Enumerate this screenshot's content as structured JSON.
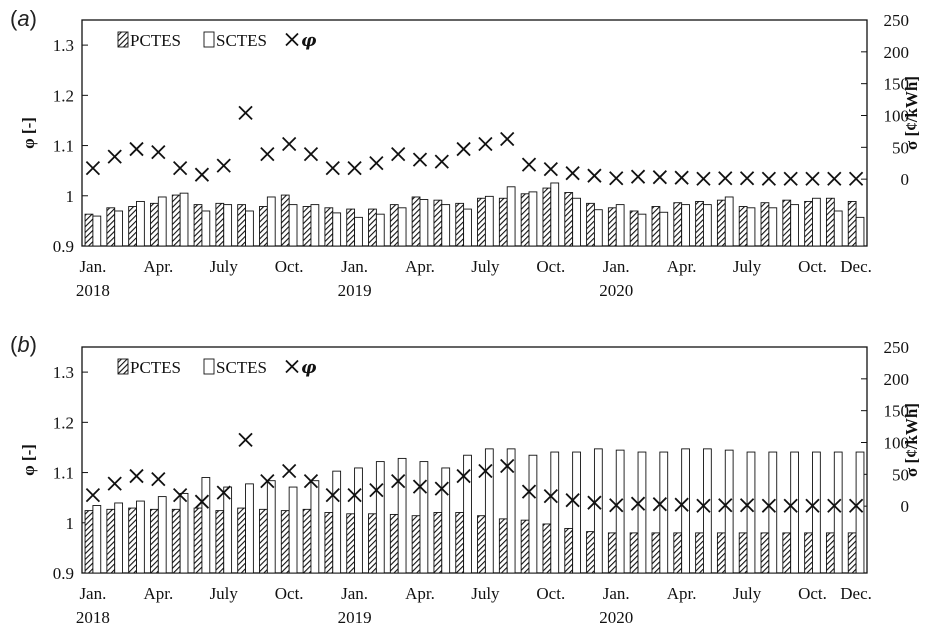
{
  "chart_data": [
    {
      "panel": "(a)",
      "type": "bar",
      "x": [
        "Jan. 2018",
        "Feb. 2018",
        "Mar. 2018",
        "Apr. 2018",
        "May 2018",
        "Jun. 2018",
        "Jul. 2018",
        "Aug. 2018",
        "Sep. 2018",
        "Oct. 2018",
        "Nov. 2018",
        "Dec. 2018",
        "Jan. 2019",
        "Feb. 2019",
        "Mar. 2019",
        "Apr. 2019",
        "May 2019",
        "Jun. 2019",
        "Jul. 2019",
        "Aug. 2019",
        "Sep. 2019",
        "Oct. 2019",
        "Nov. 2019",
        "Dec. 2019",
        "Jan. 2020",
        "Feb. 2020",
        "Mar. 2020",
        "Apr. 2020",
        "May 2020",
        "Jun. 2020",
        "Jul. 2020",
        "Aug. 2020",
        "Sep. 2020",
        "Oct. 2020",
        "Nov. 2020",
        "Dec. 2020"
      ],
      "xticks": [
        {
          "label": "Jan.",
          "year": "2018",
          "index": 0
        },
        {
          "label": "Apr.",
          "year": "",
          "index": 3
        },
        {
          "label": "July",
          "year": "",
          "index": 6
        },
        {
          "label": "Oct.",
          "year": "",
          "index": 9
        },
        {
          "label": "Jan.",
          "year": "2019",
          "index": 12
        },
        {
          "label": "Apr.",
          "year": "",
          "index": 15
        },
        {
          "label": "July",
          "year": "",
          "index": 18
        },
        {
          "label": "Oct.",
          "year": "",
          "index": 21
        },
        {
          "label": "Jan.",
          "year": "2020",
          "index": 24
        },
        {
          "label": "Apr.",
          "year": "",
          "index": 27
        },
        {
          "label": "July",
          "year": "",
          "index": 30
        },
        {
          "label": "Oct.",
          "year": "",
          "index": 33
        },
        {
          "label": "Dec.",
          "year": "",
          "index": 35
        }
      ],
      "series": [
        {
          "name": "PCTES",
          "axis": "right",
          "style": "hatched",
          "values": [
            -55,
            -45,
            -43,
            -38,
            -25,
            -40,
            -38,
            -40,
            -43,
            -25,
            -43,
            -45,
            -47,
            -47,
            -40,
            -28,
            -33,
            -38,
            -30,
            -30,
            -23,
            -14,
            -21,
            -38,
            -45,
            -50,
            -43,
            -37,
            -35,
            -33,
            -43,
            -37,
            -33,
            -35,
            -30,
            -35
          ]
        },
        {
          "name": "SCTES",
          "axis": "right",
          "style": "white",
          "values": [
            -58,
            -50,
            -35,
            -28,
            -22,
            -50,
            -40,
            -50,
            -28,
            -40,
            -40,
            -53,
            -60,
            -55,
            -45,
            -32,
            -40,
            -47,
            -27,
            -12,
            -20,
            -6,
            -30,
            -48,
            -40,
            -55,
            -52,
            -40,
            -40,
            -28,
            -45,
            -45,
            -40,
            -30,
            -50,
            -60
          ]
        },
        {
          "name": "φ",
          "axis": "left",
          "marker": "x",
          "values": [
            1.055,
            1.078,
            1.093,
            1.087,
            1.055,
            1.042,
            1.06,
            1.165,
            1.083,
            1.103,
            1.083,
            1.055,
            1.055,
            1.065,
            1.083,
            1.072,
            1.068,
            1.093,
            1.103,
            1.113,
            1.062,
            1.053,
            1.045,
            1.04,
            1.035,
            1.038,
            1.037,
            1.036,
            1.034,
            1.035,
            1.035,
            1.034,
            1.034,
            1.034,
            1.034,
            1.034
          ]
        }
      ],
      "yleft": {
        "label": "φ [-]",
        "ylim": [
          0.9,
          1.35
        ],
        "ticks": [
          "0.9",
          "1",
          "1.1",
          "1.2",
          "1.3"
        ]
      },
      "yright": {
        "label": "σ [¢/kWh]",
        "ylim": [
          -105,
          250
        ],
        "ticks": [
          "0",
          "50",
          "100",
          "150",
          "200",
          "250"
        ]
      },
      "legend": {
        "position": "top-left",
        "items": [
          "PCTES",
          "SCTES",
          "φ"
        ]
      }
    },
    {
      "panel": "(b)",
      "type": "bar",
      "x": [
        "Jan. 2018",
        "Feb. 2018",
        "Mar. 2018",
        "Apr. 2018",
        "May 2018",
        "Jun. 2018",
        "Jul. 2018",
        "Aug. 2018",
        "Sep. 2018",
        "Oct. 2018",
        "Nov. 2018",
        "Dec. 2018",
        "Jan. 2019",
        "Feb. 2019",
        "Mar. 2019",
        "Apr. 2019",
        "May 2019",
        "Jun. 2019",
        "Jul. 2019",
        "Aug. 2019",
        "Sep. 2019",
        "Oct. 2019",
        "Nov. 2019",
        "Dec. 2019",
        "Jan. 2020",
        "Feb. 2020",
        "Mar. 2020",
        "Apr. 2020",
        "May 2020",
        "Jun. 2020",
        "Jul. 2020",
        "Aug. 2020",
        "Sep. 2020",
        "Oct. 2020",
        "Nov. 2020",
        "Dec. 2020"
      ],
      "xticks": [
        {
          "label": "Jan.",
          "year": "2018",
          "index": 0
        },
        {
          "label": "Apr.",
          "year": "",
          "index": 3
        },
        {
          "label": "July",
          "year": "",
          "index": 6
        },
        {
          "label": "Oct.",
          "year": "",
          "index": 9
        },
        {
          "label": "Jan.",
          "year": "2019",
          "index": 12
        },
        {
          "label": "Apr.",
          "year": "",
          "index": 15
        },
        {
          "label": "July",
          "year": "",
          "index": 18
        },
        {
          "label": "Oct.",
          "year": "",
          "index": 21
        },
        {
          "label": "Jan.",
          "year": "2020",
          "index": 24
        },
        {
          "label": "Apr.",
          "year": "",
          "index": 27
        },
        {
          "label": "July",
          "year": "",
          "index": 30
        },
        {
          "label": "Oct.",
          "year": "",
          "index": 33
        },
        {
          "label": "Dec.",
          "year": "",
          "index": 35
        }
      ],
      "series": [
        {
          "name": "PCTES",
          "axis": "right",
          "style": "hatched",
          "values": [
            -7,
            -5,
            -3,
            -5,
            -5,
            -3,
            -7,
            -3,
            -5,
            -7,
            -5,
            -10,
            -12,
            -12,
            -13,
            -15,
            -10,
            -10,
            -15,
            -20,
            -22,
            -28,
            -35,
            -40,
            -42,
            -42,
            -42,
            -42,
            -42,
            -42,
            -42,
            -42,
            -42,
            -42,
            -42,
            -42
          ]
        },
        {
          "name": "SCTES",
          "axis": "right",
          "style": "white",
          "values": [
            1,
            5,
            8,
            15,
            20,
            45,
            30,
            35,
            40,
            30,
            40,
            55,
            60,
            70,
            75,
            70,
            60,
            80,
            90,
            90,
            80,
            85,
            85,
            90,
            88,
            85,
            85,
            90,
            90,
            88,
            85,
            85,
            85,
            85,
            85,
            85
          ]
        },
        {
          "name": "φ",
          "axis": "left",
          "marker": "x",
          "values": [
            1.055,
            1.078,
            1.093,
            1.087,
            1.055,
            1.042,
            1.06,
            1.165,
            1.083,
            1.103,
            1.083,
            1.055,
            1.055,
            1.065,
            1.083,
            1.072,
            1.068,
            1.093,
            1.103,
            1.113,
            1.062,
            1.053,
            1.045,
            1.04,
            1.035,
            1.038,
            1.037,
            1.036,
            1.034,
            1.035,
            1.035,
            1.034,
            1.034,
            1.034,
            1.034,
            1.034
          ]
        }
      ],
      "yleft": {
        "label": "φ [-]",
        "ylim": [
          0.9,
          1.35
        ],
        "ticks": [
          "0.9",
          "1",
          "1.1",
          "1.2",
          "1.3"
        ]
      },
      "yright": {
        "label": "σ [¢/kWh]",
        "ylim": [
          -105,
          250
        ],
        "ticks": [
          "0",
          "50",
          "100",
          "150",
          "200",
          "250"
        ]
      },
      "legend": {
        "position": "top-left",
        "items": [
          "PCTES",
          "SCTES",
          "φ"
        ]
      }
    }
  ]
}
